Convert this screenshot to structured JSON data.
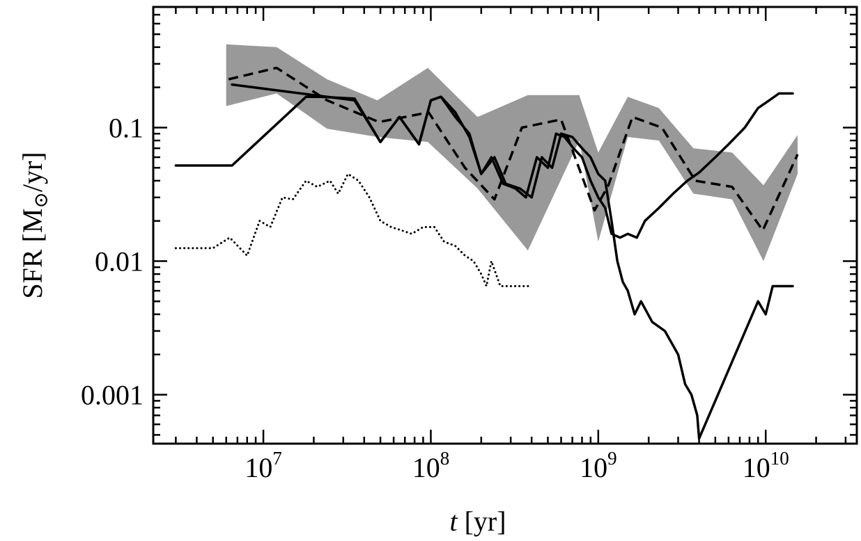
{
  "chart_data": {
    "type": "line",
    "x_scale": "log",
    "y_scale": "log",
    "xlim": [
      2200000,
      35000000000
    ],
    "ylim": [
      0.00043,
      0.8
    ],
    "xlabel": {
      "italic": "t",
      "rest": " [yr]"
    },
    "ylabel": {
      "pre": "SFR [M",
      "sub": "⊙",
      "post": "/yr]"
    },
    "x_ticks": [
      {
        "value": 10000000,
        "base": "10",
        "exp": "7"
      },
      {
        "value": 100000000,
        "base": "10",
        "exp": "8"
      },
      {
        "value": 1000000000,
        "base": "10",
        "exp": "9"
      },
      {
        "value": 10000000000,
        "base": "10",
        "exp": "10"
      }
    ],
    "y_ticks": [
      {
        "value": 0.1,
        "label": "0.1"
      },
      {
        "value": 0.01,
        "label": "0.01"
      },
      {
        "value": 0.001,
        "label": "0.001"
      }
    ],
    "grid": false,
    "legend": "none",
    "colors": {
      "band": "#999999",
      "line": "#000000"
    },
    "band": {
      "x": [
        6000000.0,
        12000000.0,
        24000000.0,
        48000000.0,
        96000000.0,
        190000000.0,
        380000000.0,
        770000000.0,
        1000000000.0,
        1500000000.0,
        2300000000.0,
        3700000000.0,
        6300000000.0,
        9700000000.0,
        15500000000.0
      ],
      "upper": [
        0.42,
        0.4,
        0.23,
        0.16,
        0.28,
        0.12,
        0.175,
        0.175,
        0.065,
        0.17,
        0.14,
        0.07,
        0.065,
        0.037,
        0.088
      ],
      "lower": [
        0.145,
        0.18,
        0.098,
        0.085,
        0.078,
        0.035,
        0.012,
        0.08,
        0.014,
        0.085,
        0.08,
        0.032,
        0.029,
        0.01,
        0.045
      ]
    },
    "series": [
      {
        "style": "dashed",
        "x": [
          6200000.0,
          12000000.0,
          24000000.0,
          49000000.0,
          97000000.0,
          160000000.0,
          240000000.0,
          350000000.0,
          600000000.0,
          950000000.0,
          1150000000.0,
          1600000000.0,
          2400000000.0,
          3800000000.0,
          6300000000.0,
          9600000000.0,
          15500000000.0
        ],
        "y": [
          0.23,
          0.28,
          0.16,
          0.11,
          0.13,
          0.05,
          0.029,
          0.1,
          0.115,
          0.024,
          0.037,
          0.12,
          0.1,
          0.04,
          0.036,
          0.017,
          0.063
        ]
      },
      {
        "style": "solid",
        "x": [
          3000000.0,
          6500000.0,
          18000000.0,
          22000000.0,
          35000000.0,
          50000000.0,
          65000000.0,
          85000000.0,
          100000000.0,
          115000000.0,
          140000000.0,
          170000000.0,
          200000000.0,
          230000000.0,
          270000000.0,
          320000000.0,
          370000000.0,
          430000000.0,
          500000000.0,
          560000000.0,
          630000000.0,
          710000000.0,
          800000000.0,
          900000000.0,
          1000000000.0,
          1100000000.0,
          1200000000.0,
          1350000000.0,
          1500000000.0,
          1700000000.0,
          1900000000.0,
          2300000000.0,
          2800000000.0,
          3400000000.0,
          4000000000.0,
          5000000000.0,
          6000000000.0,
          7500000000.0,
          9000000000.0,
          10500000000.0,
          12000000000.0,
          14500000000.0
        ],
        "y": [
          0.052,
          0.052,
          0.17,
          0.17,
          0.165,
          0.078,
          0.12,
          0.075,
          0.16,
          0.17,
          0.13,
          0.085,
          0.045,
          0.06,
          0.038,
          0.035,
          0.03,
          0.06,
          0.05,
          0.09,
          0.085,
          0.07,
          0.06,
          0.04,
          0.03,
          0.025,
          0.016,
          0.015,
          0.016,
          0.015,
          0.02,
          0.025,
          0.032,
          0.04,
          0.046,
          0.06,
          0.075,
          0.1,
          0.14,
          0.16,
          0.18,
          0.18
        ]
      },
      {
        "style": "solid",
        "x": [
          6500000.0,
          12000000.0,
          35000000.0,
          50000000.0,
          65000000.0,
          85000000.0,
          100000000.0,
          115000000.0,
          140000000.0,
          170000000.0,
          200000000.0,
          240000000.0,
          280000000.0,
          340000000.0,
          400000000.0,
          460000000.0,
          530000000.0,
          600000000.0,
          700000000.0,
          800000000.0,
          900000000.0,
          1000000000.0,
          1100000000.0,
          1200000000.0,
          1300000000.0,
          1400000000.0,
          1500000000.0,
          1650000000.0,
          1800000000.0,
          2100000000.0,
          2500000000.0,
          3000000000.0,
          3300000000.0,
          3600000000.0,
          3900000000.0,
          4000000000.0,
          9000000000.0,
          10000000000.0,
          11000000000.0,
          14500000000.0
        ],
        "y": [
          0.21,
          0.19,
          0.16,
          0.078,
          0.12,
          0.075,
          0.16,
          0.17,
          0.12,
          0.09,
          0.045,
          0.06,
          0.038,
          0.035,
          0.03,
          0.06,
          0.05,
          0.09,
          0.085,
          0.07,
          0.06,
          0.045,
          0.04,
          0.02,
          0.01,
          0.007,
          0.006,
          0.004,
          0.005,
          0.0035,
          0.003,
          0.002,
          0.0012,
          0.001,
          0.0007,
          0.00047,
          0.005,
          0.004,
          0.0065,
          0.0065
        ]
      },
      {
        "style": "dotted",
        "x": [
          3000000.0,
          5000000.0,
          6300000.0,
          8000000.0,
          9500000.0,
          11000000.0,
          13000000.0,
          15000000.0,
          18000000.0,
          21000000.0,
          25000000.0,
          28000000.0,
          32000000.0,
          37000000.0,
          43000000.0,
          50000000.0,
          58000000.0,
          67000000.0,
          77000000.0,
          90000000.0,
          105000000.0,
          120000000.0,
          140000000.0,
          160000000.0,
          180000000.0,
          200000000.0,
          215000000.0,
          230000000.0,
          260000000.0,
          300000000.0,
          400000000.0
        ],
        "y": [
          0.0125,
          0.0125,
          0.015,
          0.011,
          0.02,
          0.018,
          0.03,
          0.029,
          0.04,
          0.036,
          0.04,
          0.032,
          0.045,
          0.04,
          0.03,
          0.02,
          0.018,
          0.017,
          0.016,
          0.018,
          0.018,
          0.014,
          0.013,
          0.011,
          0.01,
          0.008,
          0.0065,
          0.01,
          0.0065,
          0.0065,
          0.0065
        ]
      }
    ]
  }
}
